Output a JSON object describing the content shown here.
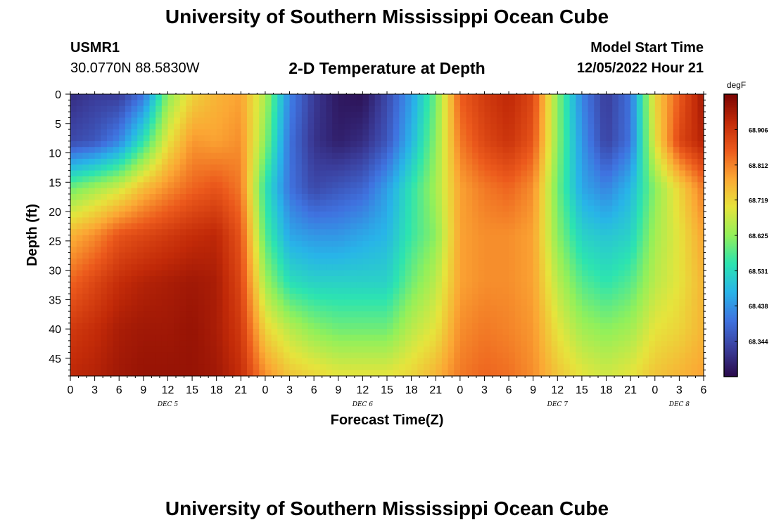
{
  "page": {
    "title": "University of Southern Mississippi Ocean Cube",
    "footer_title": "University of Southern Mississippi Ocean Cube",
    "station_id": "USMR1",
    "coordinates": "30.0770N  88.5830W",
    "plot_title": "2-D Temperature at Depth",
    "model_start_label": "Model Start Time",
    "model_start_value": "12/05/2022 Hour 21"
  },
  "chart_data": {
    "type": "heatmap",
    "title": "2-D Temperature at Depth",
    "xlabel": "Forecast Time(Z)",
    "ylabel": "Depth (ft)",
    "x_ticks": [
      "0",
      "3",
      "6",
      "9",
      "12",
      "15",
      "18",
      "21",
      "0",
      "3",
      "6",
      "9",
      "12",
      "15",
      "18",
      "21",
      "0",
      "3",
      "6",
      "9",
      "12",
      "15",
      "18",
      "21",
      "0",
      "3",
      "6"
    ],
    "x_range_hours": [
      0,
      78
    ],
    "day_labels": [
      {
        "label": "DEC 5",
        "hour": 12
      },
      {
        "label": "DEC 6",
        "hour": 36
      },
      {
        "label": "DEC 7",
        "hour": 60
      },
      {
        "label": "DEC 8",
        "hour": 75
      }
    ],
    "y_ticks": [
      "0",
      "5",
      "10",
      "15",
      "20",
      "25",
      "30",
      "35",
      "40",
      "45"
    ],
    "y_range_ft": [
      0,
      48
    ],
    "y_inverted": true,
    "colorbar": {
      "unit": "degF",
      "ticks": [
        "68.906",
        "68.812",
        "68.719",
        "68.625",
        "68.531",
        "68.438",
        "68.344"
      ],
      "range": [
        68.25,
        69.0
      ],
      "colors": [
        "#2a0a4a",
        "#3b3e9c",
        "#3f73e0",
        "#28b4e8",
        "#2ce4b0",
        "#92f05a",
        "#e6e43c",
        "#fba834",
        "#ec5a1c",
        "#c22a08",
        "#7a0403"
      ]
    },
    "time_hours": [
      0,
      3,
      6,
      9,
      12,
      15,
      18,
      21,
      24,
      27,
      30,
      33,
      36,
      39,
      42,
      45,
      48,
      51,
      54,
      57,
      60,
      63,
      66,
      69,
      72,
      75,
      78
    ],
    "depths_ft": [
      0,
      8,
      16,
      24,
      32,
      40,
      48
    ],
    "temps_degF": [
      [
        68.3,
        68.32,
        68.32,
        68.4,
        68.62,
        68.72,
        68.76,
        68.78,
        68.65,
        68.42,
        68.32,
        68.27,
        68.26,
        68.34,
        68.45,
        68.6,
        68.85,
        68.9,
        68.93,
        68.88,
        68.62,
        68.42,
        68.32,
        68.4,
        68.72,
        68.85,
        68.96
      ],
      [
        68.34,
        68.36,
        68.42,
        68.55,
        68.7,
        68.79,
        68.78,
        68.8,
        68.62,
        68.4,
        68.31,
        68.28,
        68.3,
        68.36,
        68.48,
        68.62,
        68.82,
        68.88,
        68.91,
        68.86,
        68.62,
        68.44,
        68.33,
        68.4,
        68.7,
        68.88,
        68.94
      ],
      [
        68.6,
        68.64,
        68.68,
        68.75,
        68.8,
        68.84,
        68.86,
        68.82,
        68.55,
        68.4,
        68.34,
        68.36,
        68.38,
        68.45,
        68.55,
        68.64,
        68.78,
        68.82,
        68.84,
        68.8,
        68.6,
        68.46,
        68.42,
        68.48,
        68.62,
        68.72,
        68.82
      ],
      [
        68.76,
        68.8,
        68.86,
        68.88,
        68.9,
        68.92,
        68.93,
        68.86,
        68.58,
        68.46,
        68.44,
        68.44,
        68.46,
        68.48,
        68.56,
        68.62,
        68.78,
        68.8,
        68.8,
        68.78,
        68.62,
        68.52,
        68.5,
        68.52,
        68.64,
        68.7,
        68.78
      ],
      [
        68.84,
        68.88,
        68.92,
        68.94,
        68.95,
        68.96,
        68.95,
        68.88,
        68.64,
        68.54,
        68.52,
        68.52,
        68.52,
        68.52,
        68.6,
        68.66,
        68.78,
        68.8,
        68.8,
        68.78,
        68.66,
        68.58,
        68.55,
        68.58,
        68.66,
        68.7,
        68.76
      ],
      [
        68.9,
        68.92,
        68.95,
        68.96,
        68.96,
        68.97,
        68.95,
        68.9,
        68.72,
        68.66,
        68.62,
        68.6,
        68.6,
        68.6,
        68.66,
        68.7,
        68.8,
        68.82,
        68.81,
        68.79,
        68.7,
        68.64,
        68.62,
        68.64,
        68.7,
        68.72,
        68.76
      ],
      [
        68.93,
        68.94,
        68.96,
        68.97,
        68.97,
        68.97,
        68.96,
        68.92,
        68.8,
        68.74,
        68.72,
        68.7,
        68.7,
        68.7,
        68.72,
        68.76,
        68.82,
        68.84,
        68.83,
        68.8,
        68.74,
        68.7,
        68.68,
        68.7,
        68.74,
        68.76,
        68.78
      ]
    ]
  }
}
